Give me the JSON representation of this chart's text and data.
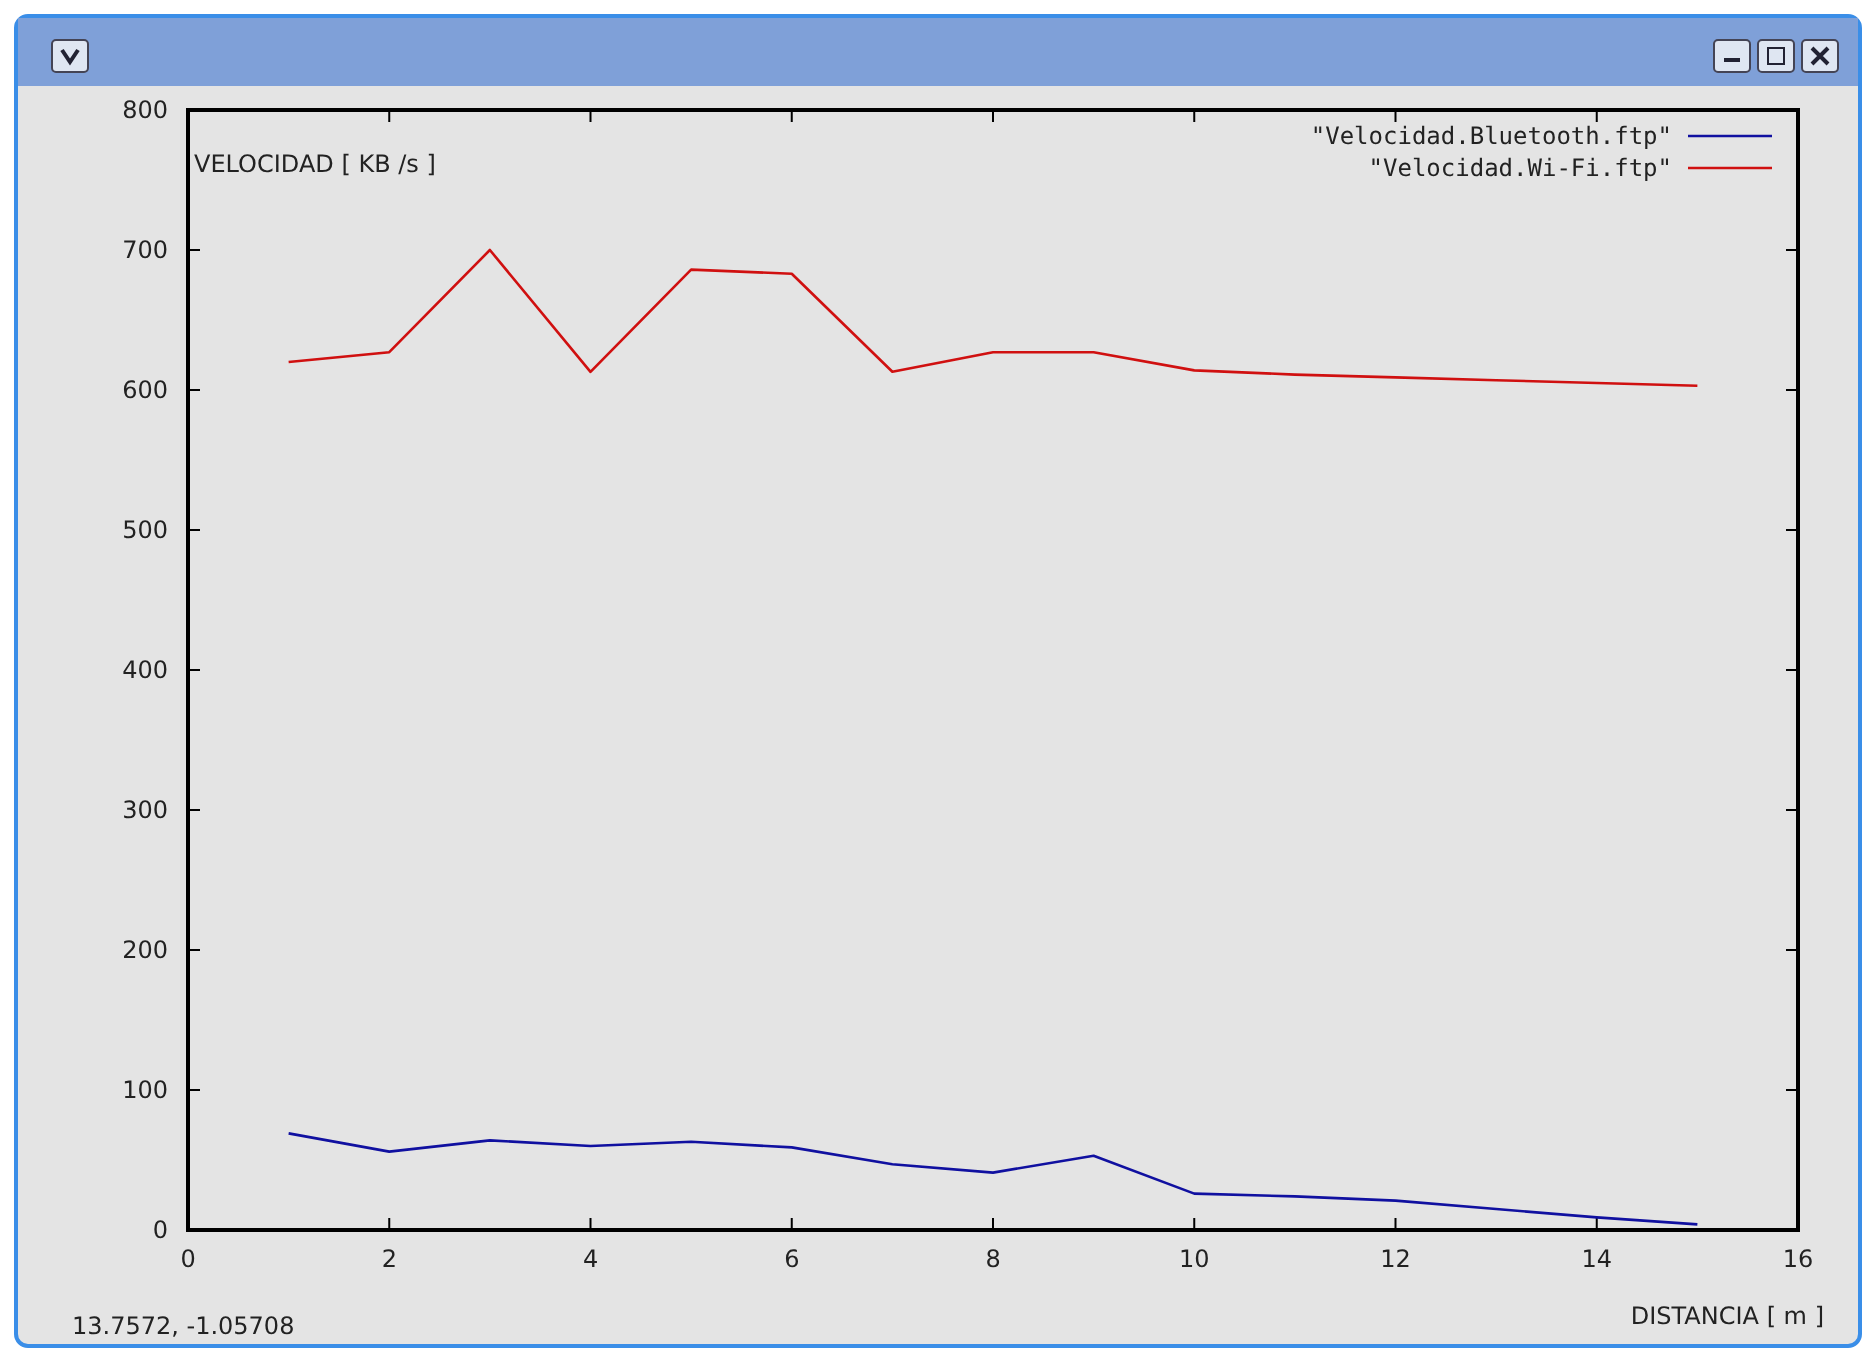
{
  "chart_data": {
    "type": "line",
    "xlabel": "DISTANCIA [ m ]",
    "ylabel": "VELOCIDAD [ KB /s ]",
    "x": [
      1,
      2,
      3,
      4,
      5,
      6,
      7,
      8,
      9,
      10,
      11,
      12,
      13,
      14,
      15
    ],
    "series": [
      {
        "name": "\"Velocidad.Bluetooth.ftp\"",
        "color": "#1010a0",
        "values": [
          69,
          56,
          64,
          60,
          63,
          59,
          47,
          41,
          53,
          26,
          24,
          21,
          15,
          9,
          4
        ]
      },
      {
        "name": "\"Velocidad.Wi-Fi.ftp\"",
        "color": "#d01010",
        "values": [
          620,
          627,
          700,
          613,
          686,
          683,
          613,
          627,
          627,
          614,
          611,
          609,
          607,
          605,
          603
        ]
      }
    ],
    "xlim": [
      0,
      16
    ],
    "xticks": [
      0,
      2,
      4,
      6,
      8,
      10,
      12,
      14,
      16
    ],
    "ylim": [
      0,
      800
    ],
    "yticks": [
      0,
      100,
      200,
      300,
      400,
      500,
      600,
      700,
      800
    ],
    "grid": false,
    "legend": "top right",
    "marker": "none",
    "line_style": "solid",
    "annotations": [
      "13.7572, -1.05708"
    ]
  }
}
